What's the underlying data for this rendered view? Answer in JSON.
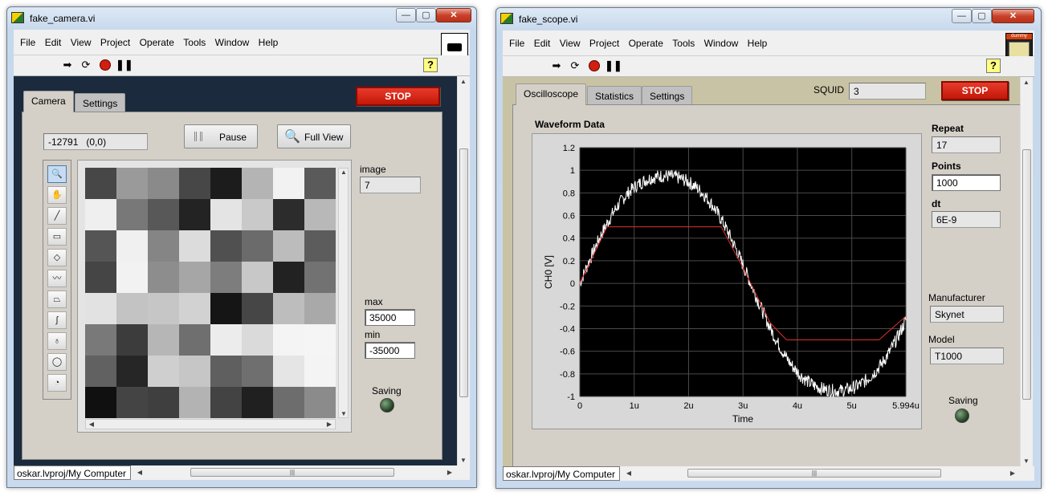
{
  "camera": {
    "title": "fake_camera.vi",
    "menu": [
      "File",
      "Edit",
      "View",
      "Project",
      "Operate",
      "Tools",
      "Window",
      "Help"
    ],
    "tabs": [
      "Camera",
      "Settings"
    ],
    "stop_label": "STOP",
    "pixel_value": "-12791",
    "pixel_coord": "(0,0)",
    "pause_label": "Pause",
    "fullview_label": "Full View",
    "image_label": "image",
    "image_value": "7",
    "max_label": "max",
    "max_value": "35000",
    "min_label": "min",
    "min_value": "-35000",
    "saving_label": "Saving",
    "status_path": "oskar.lvproj/My Computer",
    "pixels": [
      [
        "#474747",
        "#9a9a9a",
        "#8a8a8a",
        "#474747",
        "#1c1c1c",
        "#b4b4b4",
        "#f2f2f2",
        "#5a5a5a"
      ],
      [
        "#efefef",
        "#787878",
        "#585858",
        "#232323",
        "#e4e4e4",
        "#c9c9c9",
        "#2c2c2c",
        "#b8b8b8"
      ],
      [
        "#555555",
        "#f0f0f0",
        "#858585",
        "#dcdcdc",
        "#505050",
        "#6b6b6b",
        "#bcbcbc",
        "#5c5c5c"
      ],
      [
        "#454545",
        "#f2f2f2",
        "#8d8d8d",
        "#a6a6a6",
        "#7d7d7d",
        "#c8c8c8",
        "#222222",
        "#727272"
      ],
      [
        "#e2e2e2",
        "#c3c3c3",
        "#c6c6c6",
        "#d2d2d2",
        "#151515",
        "#464646",
        "#bdbdbd",
        "#a9a9a9"
      ],
      [
        "#797979",
        "#3c3c3c",
        "#b6b6b6",
        "#6f6f6f",
        "#ececec",
        "#dadada",
        "#f4f4f4",
        "#f5f5f5"
      ],
      [
        "#616161",
        "#262626",
        "#cfcfcf",
        "#c6c6c6",
        "#5f5f5f",
        "#6f6f6f",
        "#e5e5e5",
        "#f4f4f4"
      ],
      [
        "#101010",
        "#444444",
        "#3f3f3f",
        "#b3b3b3",
        "#434343",
        "#202020",
        "#6d6d6d",
        "#8b8b8b"
      ]
    ],
    "bg_color": "#1b2b3d"
  },
  "scope": {
    "title": "fake_scope.vi",
    "menu": [
      "File",
      "Edit",
      "View",
      "Project",
      "Operate",
      "Tools",
      "Window",
      "Help"
    ],
    "tabs": [
      "Oscilloscope",
      "Statistics",
      "Settings"
    ],
    "squid_label": "SQUID",
    "squid_value": "3",
    "stop_label": "STOP",
    "graph_title": "Waveform Data",
    "repeat_label": "Repeat",
    "repeat_value": "17",
    "points_label": "Points",
    "points_value": "1000",
    "dt_label": "dt",
    "dt_value": "6E-9",
    "manufacturer_label": "Manufacturer",
    "manufacturer_value": "Skynet",
    "model_label": "Model",
    "model_value": "T1000",
    "saving_label": "Saving",
    "status_path": "oskar.lvproj/My Computer",
    "bg_color": "#c9c3a5",
    "icon_text": "dummy"
  },
  "chart_data": {
    "type": "line",
    "xlabel": "Time",
    "ylabel": "CH0 [V]",
    "xlim": [
      0,
      5.994
    ],
    "ylim": [
      -1,
      1.2
    ],
    "x_ticks": [
      "0",
      "1u",
      "2u",
      "3u",
      "4u",
      "5u",
      "5.994u"
    ],
    "y_ticks": [
      "1.2",
      "1",
      "0.8",
      "0.6",
      "0.4",
      "0.2",
      "0",
      "-0.2",
      "-0.4",
      "-0.6",
      "-0.8",
      "-1"
    ],
    "background": "#000000",
    "grid": true,
    "series": [
      {
        "color": "#ffffff",
        "x": [
          0,
          0.5,
          1,
          1.5,
          1.57,
          2,
          2.5,
          3,
          3.14,
          3.5,
          4,
          4.5,
          4.71,
          5,
          5.5,
          5.994
        ],
        "y": [
          0,
          0.48,
          0.84,
          1.0,
          1.0,
          0.91,
          0.6,
          0.14,
          0,
          -0.35,
          -0.76,
          -0.98,
          -1.0,
          -0.96,
          -0.71,
          -0.29
        ]
      },
      {
        "color": "#e03030",
        "x": [
          0,
          0.5,
          2.6,
          3.0,
          3.14,
          3.5,
          3.8,
          5.5,
          5.994
        ],
        "y": [
          0,
          0.5,
          0.5,
          0.14,
          0,
          -0.35,
          -0.5,
          -0.5,
          -0.29
        ]
      }
    ]
  }
}
